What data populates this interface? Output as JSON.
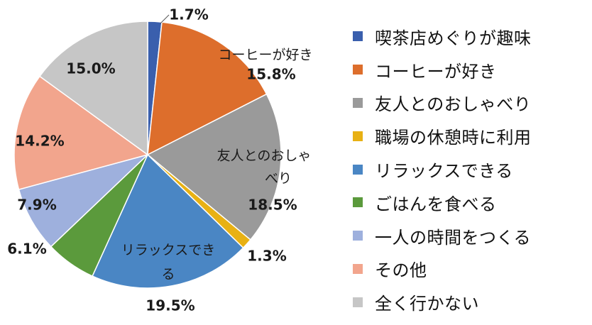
{
  "chart_data": {
    "type": "pie",
    "unit": "%",
    "start_angle_deg": 0,
    "direction": "clockwise",
    "slices": [
      {
        "name": "喫茶店めぐりが趣味",
        "value": 1.7,
        "pct_label": "1.7%",
        "slice_label": "",
        "color": "#3a5fad"
      },
      {
        "name": "コーヒーが好き",
        "value": 15.8,
        "pct_label": "15.8%",
        "slice_label": "コーヒーが好き",
        "color": "#dd6e2c"
      },
      {
        "name": "友人とのおしゃべり",
        "value": 18.5,
        "pct_label": "18.5%",
        "slice_label": "友人とのおしゃべり",
        "color": "#9a9a9a"
      },
      {
        "name": "職場の休憩時に利用",
        "value": 1.3,
        "pct_label": "1.3%",
        "slice_label": "",
        "color": "#e8b114"
      },
      {
        "name": "リラックスできる",
        "value": 19.5,
        "pct_label": "19.5%",
        "slice_label": "リラックスできる",
        "color": "#4a86c4"
      },
      {
        "name": "ごはんを食べる",
        "value": 6.1,
        "pct_label": "6.1%",
        "slice_label": "",
        "color": "#5b9a3c"
      },
      {
        "name": "一人の時間をつくる",
        "value": 7.9,
        "pct_label": "7.9%",
        "slice_label": "",
        "color": "#9eb0dd"
      },
      {
        "name": "その他",
        "value": 14.2,
        "pct_label": "14.2%",
        "slice_label": "",
        "color": "#f2a58d"
      },
      {
        "name": "全く行かない",
        "value": 15.0,
        "pct_label": "15.0%",
        "slice_label": "",
        "color": "#c6c6c6"
      }
    ],
    "legend_position": "right"
  }
}
